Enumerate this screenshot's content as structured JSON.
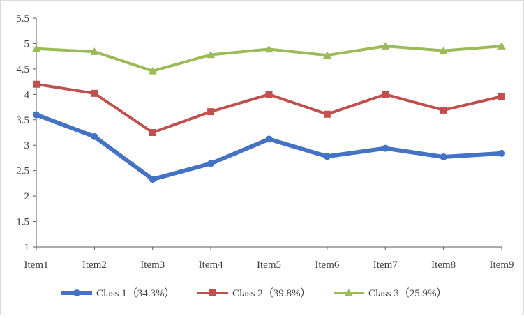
{
  "chart_data": {
    "type": "line",
    "title": "",
    "xlabel": "",
    "ylabel": "",
    "categories": [
      "Item1",
      "Item2",
      "Item3",
      "Item4",
      "Item5",
      "Item6",
      "Item7",
      "Item8",
      "Item9"
    ],
    "ylim": [
      1,
      5.5
    ],
    "yticks": [
      1,
      1.5,
      2,
      2.5,
      3,
      3.5,
      4,
      4.5,
      5,
      5.5
    ],
    "ytick_labels": [
      "1",
      "1.5",
      "2",
      "2.5",
      "3",
      "3.5",
      "4",
      "4.5",
      "5",
      "5.5"
    ],
    "grid": "none",
    "legend_position": "bottom",
    "series": [
      {
        "name": "Class 1（34.3%）",
        "color": "#4472c4",
        "marker": "circle",
        "values": [
          3.6,
          3.17,
          2.33,
          2.64,
          3.12,
          2.78,
          2.94,
          2.77,
          2.84
        ]
      },
      {
        "name": "Class 2（39.8%）",
        "color": "#c0504d",
        "marker": "square",
        "values": [
          4.2,
          4.02,
          3.25,
          3.66,
          4.0,
          3.61,
          4.0,
          3.69,
          3.96
        ]
      },
      {
        "name": "Class 3（25.9%）",
        "color": "#9bbb59",
        "marker": "triangle",
        "values": [
          4.9,
          4.84,
          4.46,
          4.78,
          4.89,
          4.77,
          4.95,
          4.86,
          4.95
        ]
      }
    ]
  }
}
